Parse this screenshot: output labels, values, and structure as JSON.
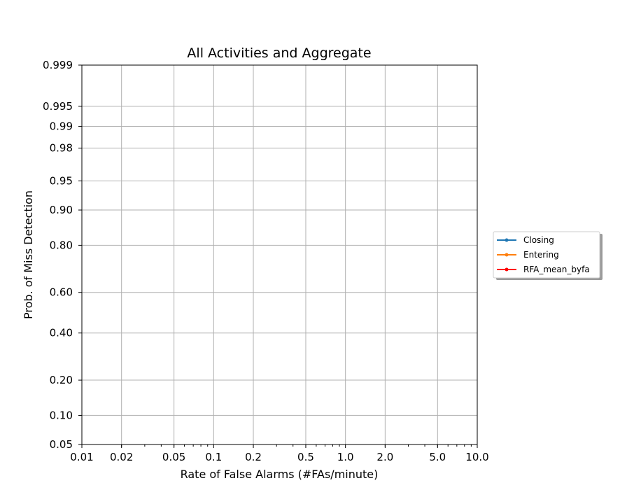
{
  "chart_data": {
    "type": "line",
    "title": "All Activities and Aggregate",
    "xlabel": "Rate of False Alarms (#FAs/minute)",
    "ylabel": "Prob. of Miss Detection",
    "xscale": "log",
    "yscale": "normal-deviate",
    "xlim": [
      0.01,
      10.0
    ],
    "ylim": [
      0.05,
      0.999
    ],
    "xticks": [
      0.01,
      0.02,
      0.05,
      0.1,
      0.2,
      0.5,
      1.0,
      2.0,
      5.0,
      10.0
    ],
    "xtick_labels": [
      "0.01",
      "0.02",
      "0.05",
      "0.1",
      "0.2",
      "0.5",
      "1.0",
      "2.0",
      "5.0",
      "10.0"
    ],
    "yticks": [
      0.05,
      0.1,
      0.2,
      0.4,
      0.6,
      0.8,
      0.9,
      0.95,
      0.98,
      0.99,
      0.995,
      0.999
    ],
    "ytick_labels": [
      "0.05",
      "0.10",
      "0.20",
      "0.40",
      "0.60",
      "0.80",
      "0.90",
      "0.95",
      "0.98",
      "0.99",
      "0.995",
      "0.999"
    ],
    "grid": true,
    "legend_placement": "outside-right",
    "series": [
      {
        "name": "Closing",
        "color": "#1f77b4",
        "x": [],
        "y": []
      },
      {
        "name": "Entering",
        "color": "#ff7f0e",
        "x": [],
        "y": []
      },
      {
        "name": "RFA_mean_byfa",
        "color": "#ff0000",
        "x": [],
        "y": []
      }
    ]
  }
}
